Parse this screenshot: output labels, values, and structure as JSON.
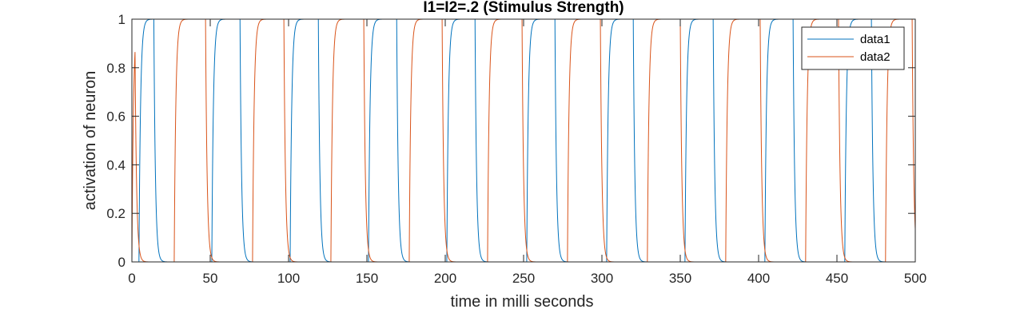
{
  "chart_data": {
    "type": "line",
    "title": "I1=I2=.2 (Stimulus Strength)",
    "xlabel": "time in milli seconds",
    "ylabel": "activation of neuron",
    "xlim": [
      0,
      500
    ],
    "ylim": [
      0,
      1
    ],
    "xticks": [
      "0",
      "50",
      "100",
      "150",
      "200",
      "250",
      "300",
      "350",
      "400",
      "450",
      "500"
    ],
    "yticks": [
      "0",
      "0.2",
      "0.4",
      "0.6",
      "0.8",
      "1"
    ],
    "grid": false,
    "legend_position": "top-right",
    "series": [
      {
        "name": "data1",
        "color": "#0072BD",
        "rise_times": [
          4.5,
          51,
          101,
          151,
          201,
          252,
          303,
          353,
          404,
          455
        ],
        "fall_times": [
          14,
          69,
          119,
          169,
          219,
          270,
          320,
          371,
          422,
          472
        ]
      },
      {
        "name": "data2",
        "color": "#D95319",
        "rise_times": [
          0,
          27,
          77,
          127,
          177,
          227,
          278,
          329,
          379,
          430,
          481
        ],
        "fall_times": [
          2,
          47,
          97,
          148,
          198,
          249,
          299,
          350,
          401,
          451,
          498
        ]
      }
    ],
    "dynamics": {
      "rise_tau_ms": 1.0,
      "fall_tau_ms": 1.0
    }
  }
}
